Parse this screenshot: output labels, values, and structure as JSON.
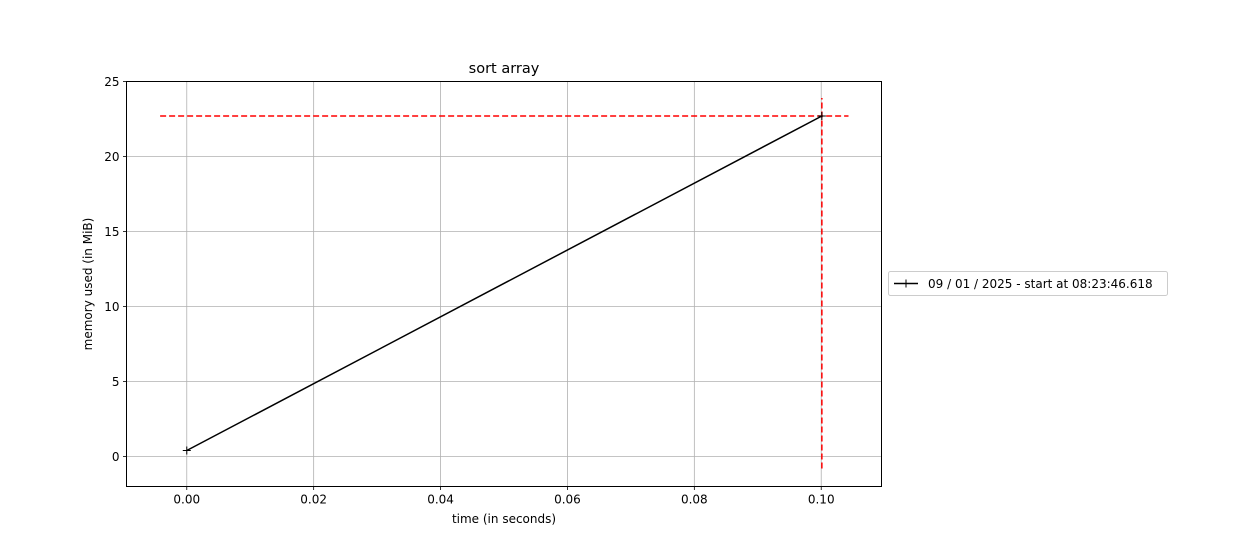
{
  "chart_data": {
    "type": "line",
    "title": "sort array",
    "xlabel": "time (in seconds)",
    "ylabel": "memory used (in MiB)",
    "xlim": [
      -0.0095,
      0.1095
    ],
    "ylim": [
      -2,
      25
    ],
    "xticks": [
      0.0,
      0.02,
      0.04,
      0.06,
      0.08,
      0.1
    ],
    "xtick_labels": [
      "0.00",
      "0.02",
      "0.04",
      "0.06",
      "0.08",
      "0.10"
    ],
    "yticks": [
      0,
      5,
      10,
      15,
      20,
      25
    ],
    "ytick_labels": [
      "0",
      "5",
      "10",
      "15",
      "20",
      "25"
    ],
    "grid": true,
    "legend_placement": "right of plot, centered vertically",
    "series": [
      {
        "name": "09 / 01 / 2025 - start at 08:23:46.618",
        "color": "#000000",
        "marker": "+",
        "x": [
          0.0,
          0.1001
        ],
        "y": [
          0.4,
          22.7
        ]
      }
    ],
    "peak_markers": {
      "color": "#ff0000",
      "style": "dashed",
      "horizontal": {
        "y": 22.7,
        "x_range": [
          -0.0042,
          0.1043
        ]
      },
      "vertical": {
        "x": 0.1001,
        "y_range": [
          -0.8,
          23.9
        ]
      }
    }
  }
}
